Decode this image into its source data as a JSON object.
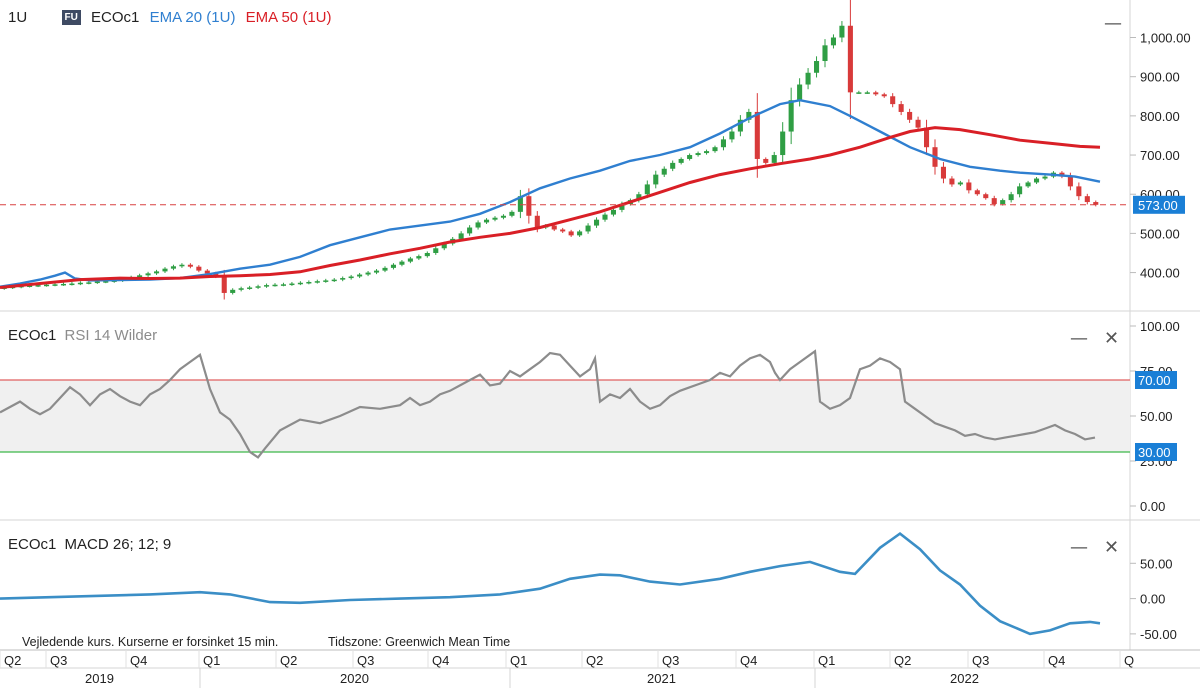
{
  "price_panel": {
    "interval": "1U",
    "badge": "FU",
    "symbol": "ECOc1",
    "ema20_label": "EMA 20 (1U)",
    "ema50_label": "EMA 50 (1U)",
    "last_value": "573.00"
  },
  "rsi_panel": {
    "symbol": "ECOc1",
    "label": "RSI 14 Wilder",
    "upper_line": "70.00",
    "lower_line": "30.00"
  },
  "macd_panel": {
    "symbol": "ECOc1",
    "label": "MACD 26; 12; 9"
  },
  "controls": {
    "minimize": "—",
    "close": "✕"
  },
  "footer": {
    "disclaimer": "Vejledende kurs. Kurserne er forsinket 15 min.",
    "timezone": "Tidszone: Greenwich Mean Time"
  },
  "colors": {
    "ema20": "#2f7fd0",
    "ema50": "#d91f26",
    "rsi": "#8c8c8c",
    "macd": "#3b8ec6",
    "up": "#2f9e44",
    "down": "#d83a3a",
    "rsi_upper": "#e06060",
    "rsi_lower": "#3db84a",
    "price_tag": "#1a7fd6"
  },
  "chart_data": [
    {
      "type": "candlestick",
      "symbol": "ECOc1",
      "interval": "1U",
      "x_range": [
        "2019-Q2",
        "2022-Q4"
      ],
      "y_ticks": [
        "1,000.00",
        "900.00",
        "800.00",
        "700.00",
        "600.00",
        "500.00",
        "400.00"
      ],
      "ylim": [
        330,
        1060
      ],
      "last_price": 573.0,
      "close": [
        362,
        364,
        366,
        367,
        368,
        369,
        370,
        371,
        372,
        374,
        375,
        377,
        378,
        380,
        384,
        388,
        393,
        398,
        403,
        410,
        416,
        420,
        415,
        405,
        398,
        390,
        348,
        356,
        360,
        362,
        365,
        368,
        369,
        370,
        372,
        374,
        376,
        378,
        380,
        382,
        386,
        390,
        395,
        400,
        405,
        412,
        420,
        428,
        436,
        442,
        450,
        462,
        474,
        486,
        500,
        515,
        528,
        535,
        540,
        545,
        555,
        595,
        545,
        515,
        520,
        510,
        505,
        495,
        505,
        520,
        535,
        548,
        560,
        575,
        585,
        600,
        625,
        650,
        665,
        680,
        690,
        700,
        705,
        710,
        720,
        740,
        760,
        790,
        810,
        690,
        680,
        700,
        760,
        840,
        880,
        910,
        940,
        980,
        1000,
        1030,
        860,
        860,
        860,
        855,
        850,
        830,
        810,
        790,
        770,
        720,
        670,
        640,
        625,
        630,
        610,
        600,
        590,
        575,
        585,
        600,
        620,
        630,
        640,
        645,
        655,
        645,
        620,
        595,
        580,
        573
      ],
      "series": [
        {
          "name": "EMA 20 (1U)",
          "values": [
            [
              0,
              364
            ],
            [
              20,
              372
            ],
            [
              40,
              382
            ],
            [
              55,
              392
            ],
            [
              65,
              400
            ],
            [
              75,
              385
            ],
            [
              90,
              380
            ],
            [
              120,
              381
            ],
            [
              150,
              382
            ],
            [
              180,
              386
            ],
            [
              210,
              396
            ],
            [
              240,
              410
            ],
            [
              270,
              420
            ],
            [
              300,
              440
            ],
            [
              330,
              470
            ],
            [
              360,
              490
            ],
            [
              390,
              510
            ],
            [
              420,
              520
            ],
            [
              450,
              530
            ],
            [
              480,
              550
            ],
            [
              510,
              580
            ],
            [
              540,
              615
            ],
            [
              570,
              640
            ],
            [
              600,
              660
            ],
            [
              630,
              685
            ],
            [
              660,
              700
            ],
            [
              690,
              720
            ],
            [
              720,
              755
            ],
            [
              750,
              795
            ],
            [
              780,
              830
            ],
            [
              800,
              840
            ],
            [
              830,
              825
            ],
            [
              850,
              800
            ],
            [
              880,
              760
            ],
            [
              910,
              720
            ],
            [
              940,
              690
            ],
            [
              970,
              670
            ],
            [
              1000,
              660
            ],
            [
              1020,
              655
            ],
            [
              1050,
              650
            ],
            [
              1075,
              645
            ],
            [
              1100,
              632
            ]
          ]
        },
        {
          "name": "EMA 50 (1U)",
          "values": [
            [
              0,
              362
            ],
            [
              40,
              372
            ],
            [
              80,
              382
            ],
            [
              120,
              386
            ],
            [
              150,
              385
            ],
            [
              180,
              386
            ],
            [
              210,
              390
            ],
            [
              240,
              392
            ],
            [
              270,
              395
            ],
            [
              300,
              402
            ],
            [
              330,
              418
            ],
            [
              360,
              432
            ],
            [
              390,
              448
            ],
            [
              420,
              462
            ],
            [
              450,
              478
            ],
            [
              480,
              490
            ],
            [
              510,
              500
            ],
            [
              540,
              515
            ],
            [
              570,
              535
            ],
            [
              600,
              555
            ],
            [
              630,
              580
            ],
            [
              660,
              605
            ],
            [
              690,
              630
            ],
            [
              720,
              650
            ],
            [
              750,
              665
            ],
            [
              780,
              678
            ],
            [
              810,
              690
            ],
            [
              830,
              700
            ],
            [
              860,
              720
            ],
            [
              890,
              745
            ],
            [
              910,
              760
            ],
            [
              935,
              770
            ],
            [
              960,
              765
            ],
            [
              990,
              752
            ],
            [
              1020,
              738
            ],
            [
              1050,
              730
            ],
            [
              1080,
              722
            ],
            [
              1100,
              720
            ]
          ]
        }
      ]
    },
    {
      "type": "line",
      "title": "RSI 14 Wilder",
      "y_ticks": [
        "100.00",
        "75.00",
        "50.00",
        "25.00",
        "0.00"
      ],
      "ylim": [
        0,
        100
      ],
      "reference_lines": [
        70,
        30
      ],
      "series": [
        {
          "name": "RSI 14 Wilder",
          "values": [
            [
              0,
              52
            ],
            [
              10,
              55
            ],
            [
              20,
              58
            ],
            [
              30,
              54
            ],
            [
              40,
              51
            ],
            [
              50,
              54
            ],
            [
              60,
              60
            ],
            [
              70,
              66
            ],
            [
              80,
              62
            ],
            [
              90,
              56
            ],
            [
              100,
              62
            ],
            [
              110,
              65
            ],
            [
              120,
              61
            ],
            [
              130,
              58
            ],
            [
              140,
              56
            ],
            [
              150,
              62
            ],
            [
              160,
              65
            ],
            [
              170,
              70
            ],
            [
              180,
              76
            ],
            [
              190,
              80
            ],
            [
              200,
              84
            ],
            [
              210,
              65
            ],
            [
              220,
              52
            ],
            [
              230,
              48
            ],
            [
              240,
              40
            ],
            [
              250,
              30
            ],
            [
              258,
              27
            ],
            [
              265,
              32
            ],
            [
              280,
              42
            ],
            [
              300,
              48
            ],
            [
              320,
              46
            ],
            [
              340,
              50
            ],
            [
              360,
              55
            ],
            [
              380,
              54
            ],
            [
              400,
              56
            ],
            [
              410,
              60
            ],
            [
              420,
              56
            ],
            [
              430,
              58
            ],
            [
              440,
              62
            ],
            [
              450,
              64
            ],
            [
              460,
              67
            ],
            [
              470,
              70
            ],
            [
              480,
              73
            ],
            [
              490,
              67
            ],
            [
              500,
              68
            ],
            [
              510,
              75
            ],
            [
              520,
              72
            ],
            [
              530,
              76
            ],
            [
              540,
              80
            ],
            [
              550,
              85
            ],
            [
              560,
              84
            ],
            [
              570,
              78
            ],
            [
              580,
              72
            ],
            [
              590,
              76
            ],
            [
              595,
              82
            ],
            [
              600,
              58
            ],
            [
              610,
              62
            ],
            [
              620,
              60
            ],
            [
              630,
              65
            ],
            [
              640,
              58
            ],
            [
              650,
              54
            ],
            [
              660,
              56
            ],
            [
              670,
              61
            ],
            [
              680,
              64
            ],
            [
              690,
              66
            ],
            [
              700,
              68
            ],
            [
              710,
              70
            ],
            [
              720,
              74
            ],
            [
              730,
              72
            ],
            [
              740,
              78
            ],
            [
              750,
              82
            ],
            [
              760,
              84
            ],
            [
              770,
              80
            ],
            [
              775,
              74
            ],
            [
              780,
              70
            ],
            [
              790,
              76
            ],
            [
              800,
              80
            ],
            [
              810,
              84
            ],
            [
              815,
              86
            ],
            [
              820,
              58
            ],
            [
              830,
              54
            ],
            [
              840,
              56
            ],
            [
              850,
              60
            ],
            [
              860,
              76
            ],
            [
              870,
              78
            ],
            [
              880,
              82
            ],
            [
              890,
              80
            ],
            [
              900,
              76
            ],
            [
              905,
              58
            ],
            [
              915,
              54
            ],
            [
              925,
              50
            ],
            [
              935,
              46
            ],
            [
              945,
              44
            ],
            [
              955,
              42
            ],
            [
              965,
              39
            ],
            [
              975,
              40
            ],
            [
              985,
              38
            ],
            [
              995,
              37
            ],
            [
              1005,
              38
            ],
            [
              1015,
              39
            ],
            [
              1025,
              40
            ],
            [
              1035,
              41
            ],
            [
              1045,
              43
            ],
            [
              1055,
              45
            ],
            [
              1065,
              42
            ],
            [
              1075,
              40
            ],
            [
              1085,
              37
            ],
            [
              1095,
              38
            ]
          ]
        }
      ]
    },
    {
      "type": "line",
      "title": "MACD 26; 12; 9",
      "y_ticks": [
        "50.00",
        "0.00",
        "-50.00"
      ],
      "ylim": [
        -70,
        100
      ],
      "series": [
        {
          "name": "MACD 26; 12; 9",
          "values": [
            [
              0,
              0
            ],
            [
              50,
              2
            ],
            [
              100,
              4
            ],
            [
              150,
              6
            ],
            [
              200,
              9
            ],
            [
              230,
              6
            ],
            [
              270,
              -5
            ],
            [
              300,
              -6
            ],
            [
              350,
              -2
            ],
            [
              400,
              0
            ],
            [
              450,
              2
            ],
            [
              500,
              6
            ],
            [
              540,
              14
            ],
            [
              570,
              28
            ],
            [
              600,
              34
            ],
            [
              620,
              33
            ],
            [
              650,
              24
            ],
            [
              680,
              20
            ],
            [
              720,
              28
            ],
            [
              750,
              38
            ],
            [
              780,
              46
            ],
            [
              810,
              52
            ],
            [
              840,
              38
            ],
            [
              855,
              35
            ],
            [
              880,
              72
            ],
            [
              900,
              92
            ],
            [
              920,
              70
            ],
            [
              940,
              40
            ],
            [
              960,
              20
            ],
            [
              980,
              -10
            ],
            [
              1000,
              -32
            ],
            [
              1030,
              -50
            ],
            [
              1050,
              -45
            ],
            [
              1070,
              -35
            ],
            [
              1090,
              -33
            ],
            [
              1100,
              -35
            ]
          ]
        }
      ]
    },
    {
      "type": "axis",
      "quarter_ticks": [
        "Q2",
        "Q3",
        "Q4",
        "Q1",
        "Q2",
        "Q3",
        "Q4",
        "Q1",
        "Q2",
        "Q3",
        "Q4",
        "Q1",
        "Q2",
        "Q3",
        "Q4",
        "Q"
      ],
      "years": [
        "2019",
        "2020",
        "2021",
        "2022"
      ]
    }
  ]
}
